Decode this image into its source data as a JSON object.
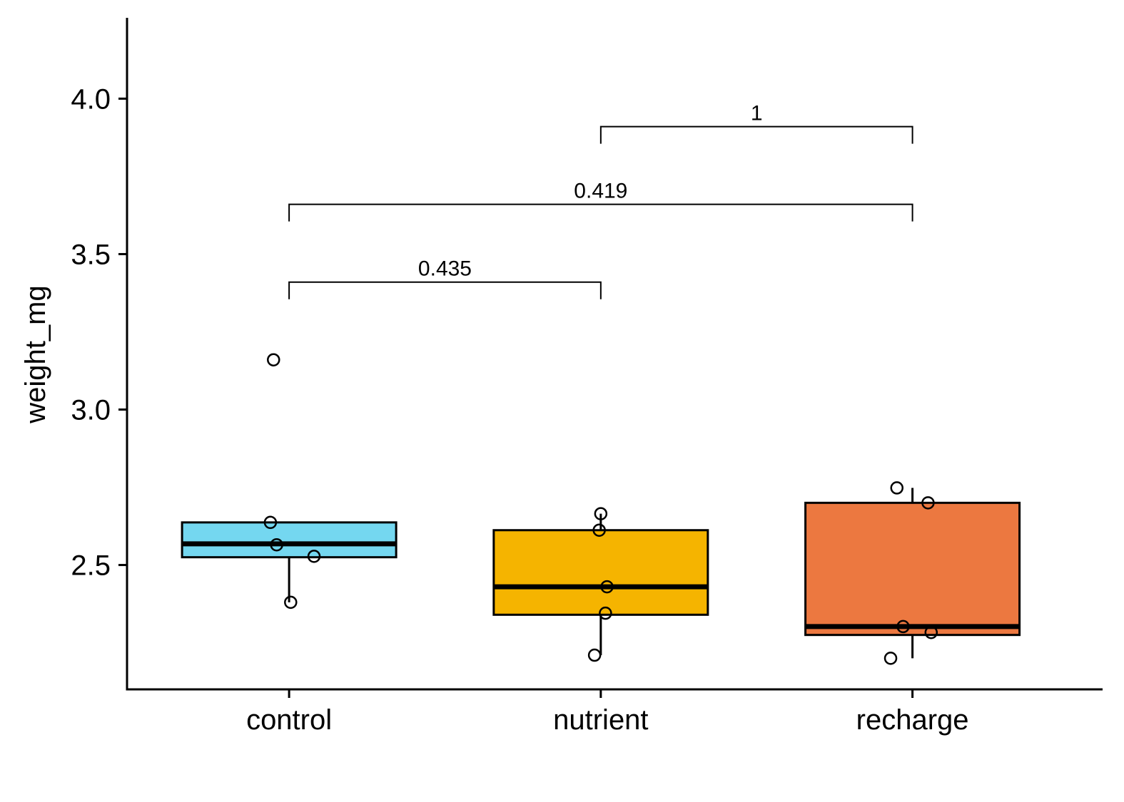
{
  "chart_data": {
    "type": "box",
    "ylabel": "weight_mg",
    "xlabel": "",
    "ylim": [
      2.1,
      4.26
    ],
    "yticks": [
      2.5,
      3.0,
      3.5,
      4.0
    ],
    "ytick_labels": [
      "2.5",
      "3.0",
      "3.5",
      "4.0"
    ],
    "categories": [
      "control",
      "nutrient",
      "recharge"
    ],
    "colors": [
      "#74D7F0",
      "#F5B400",
      "#EC7840"
    ],
    "boxes": [
      {
        "category": "control",
        "lower_whisker": 2.38,
        "q1": 2.525,
        "median": 2.568,
        "q3": 2.637,
        "upper_whisker": 2.637,
        "points": [
          3.16,
          2.637,
          2.565,
          2.528,
          2.38
        ],
        "jitter": [
          -0.05,
          -0.06,
          -0.04,
          0.08,
          0.005
        ]
      },
      {
        "category": "nutrient",
        "lower_whisker": 2.21,
        "q1": 2.34,
        "median": 2.43,
        "q3": 2.612,
        "upper_whisker": 2.665,
        "points": [
          2.665,
          2.612,
          2.43,
          2.345,
          2.21
        ],
        "jitter": [
          0.0,
          -0.005,
          0.02,
          0.015,
          -0.02
        ]
      },
      {
        "category": "recharge",
        "lower_whisker": 2.2,
        "q1": 2.275,
        "median": 2.302,
        "q3": 2.7,
        "upper_whisker": 2.748,
        "points": [
          2.748,
          2.7,
          2.302,
          2.283,
          2.2
        ],
        "jitter": [
          -0.05,
          0.05,
          -0.03,
          0.06,
          -0.07
        ]
      }
    ],
    "comparisons": [
      {
        "from": "control",
        "to": "nutrient",
        "y": 3.41,
        "label": "0.435"
      },
      {
        "from": "control",
        "to": "recharge",
        "y": 3.66,
        "label": "0.419"
      },
      {
        "from": "nutrient",
        "to": "recharge",
        "y": 3.91,
        "label": "1"
      }
    ],
    "grid": false,
    "legend": "none"
  }
}
